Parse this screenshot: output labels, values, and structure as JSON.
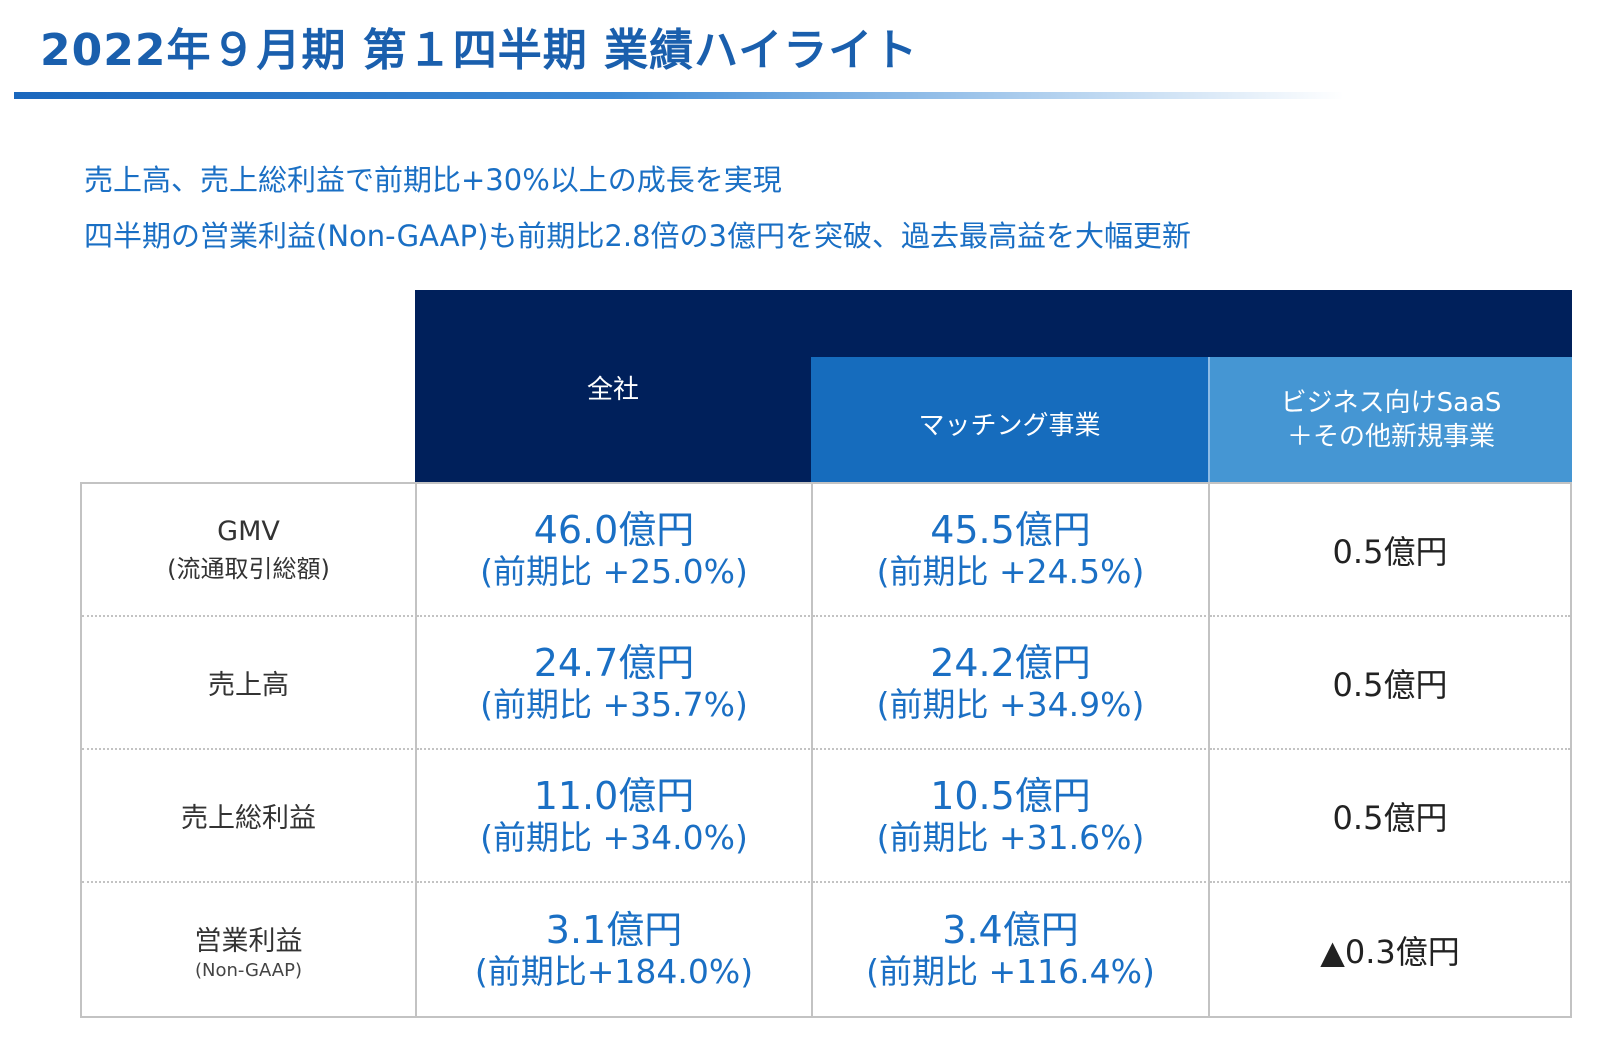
{
  "title": "2022年９月期 第１四半期 業績ハイライト",
  "summary": {
    "line1": "売上高、売上総利益で前期比+30%以上の成長を実現",
    "line2": "四半期の営業利益(Non-GAAP)も前期比2.8倍の3億円を突破、過去最高益を大幅更新"
  },
  "table": {
    "headers": {
      "all": "全社",
      "matching": "マッチング事業",
      "saas_line1": "ビジネス向けSaaS",
      "saas_line2": "＋その他新規事業"
    },
    "rows": [
      {
        "label": "GMV",
        "sublabel": "(流通取引総額)",
        "all_value": "46.0億円",
        "all_yoy": "(前期比 +25.0%)",
        "matching_value": "45.5億円",
        "matching_yoy": "(前期比 +24.5%)",
        "saas_value": "0.5億円"
      },
      {
        "label": "売上高",
        "sublabel": "",
        "all_value": "24.7億円",
        "all_yoy": "(前期比 +35.7%)",
        "matching_value": "24.2億円",
        "matching_yoy": "(前期比 +34.9%)",
        "saas_value": "0.5億円"
      },
      {
        "label": "売上総利益",
        "sublabel": "",
        "all_value": "11.0億円",
        "all_yoy": "(前期比 +34.0%)",
        "matching_value": "10.5億円",
        "matching_yoy": "(前期比 +31.6%)",
        "saas_value": "0.5億円"
      },
      {
        "label": "営業利益",
        "sublabel": "(Non-GAAP)",
        "all_value": "3.1億円",
        "all_yoy": "(前期比+184.0%)",
        "matching_value": "3.4億円",
        "matching_yoy": "(前期比 +116.4%)",
        "saas_value": "▲0.3億円"
      }
    ]
  }
}
